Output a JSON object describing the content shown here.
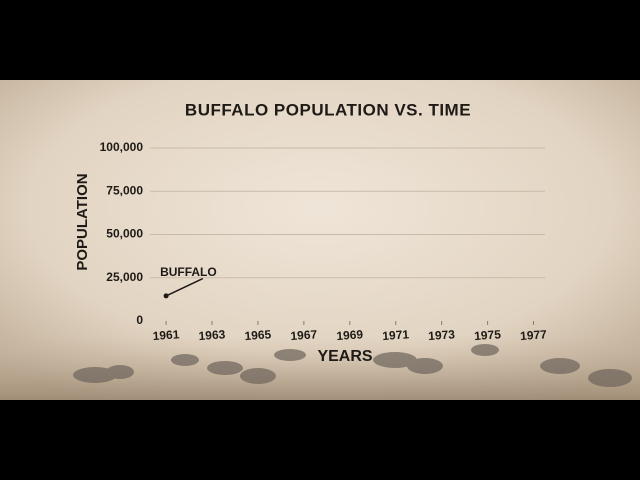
{
  "chart_data": {
    "type": "line",
    "title": "BUFFALO POPULATION VS. TIME",
    "x_label": "YEARS",
    "y_label": "POPULATION",
    "x": [
      1961,
      1962.6
    ],
    "series": [
      {
        "name": "BUFFALO",
        "color": "#1e1a16",
        "values": [
          14500,
          24500
        ]
      }
    ],
    "xlim": [
      1960.3,
      1977.5
    ],
    "xticks": [
      1961,
      1963,
      1965,
      1967,
      1969,
      1971,
      1973,
      1975,
      1977
    ],
    "ylim": [
      0,
      100000
    ],
    "yticks": [
      0,
      {
        "value": 25000,
        "label": "25,000"
      },
      {
        "value": 50000,
        "label": "50,000"
      },
      {
        "value": 75000,
        "label": "75,000"
      },
      {
        "value": 100000,
        "label": "100,000"
      }
    ],
    "grid": true
  }
}
